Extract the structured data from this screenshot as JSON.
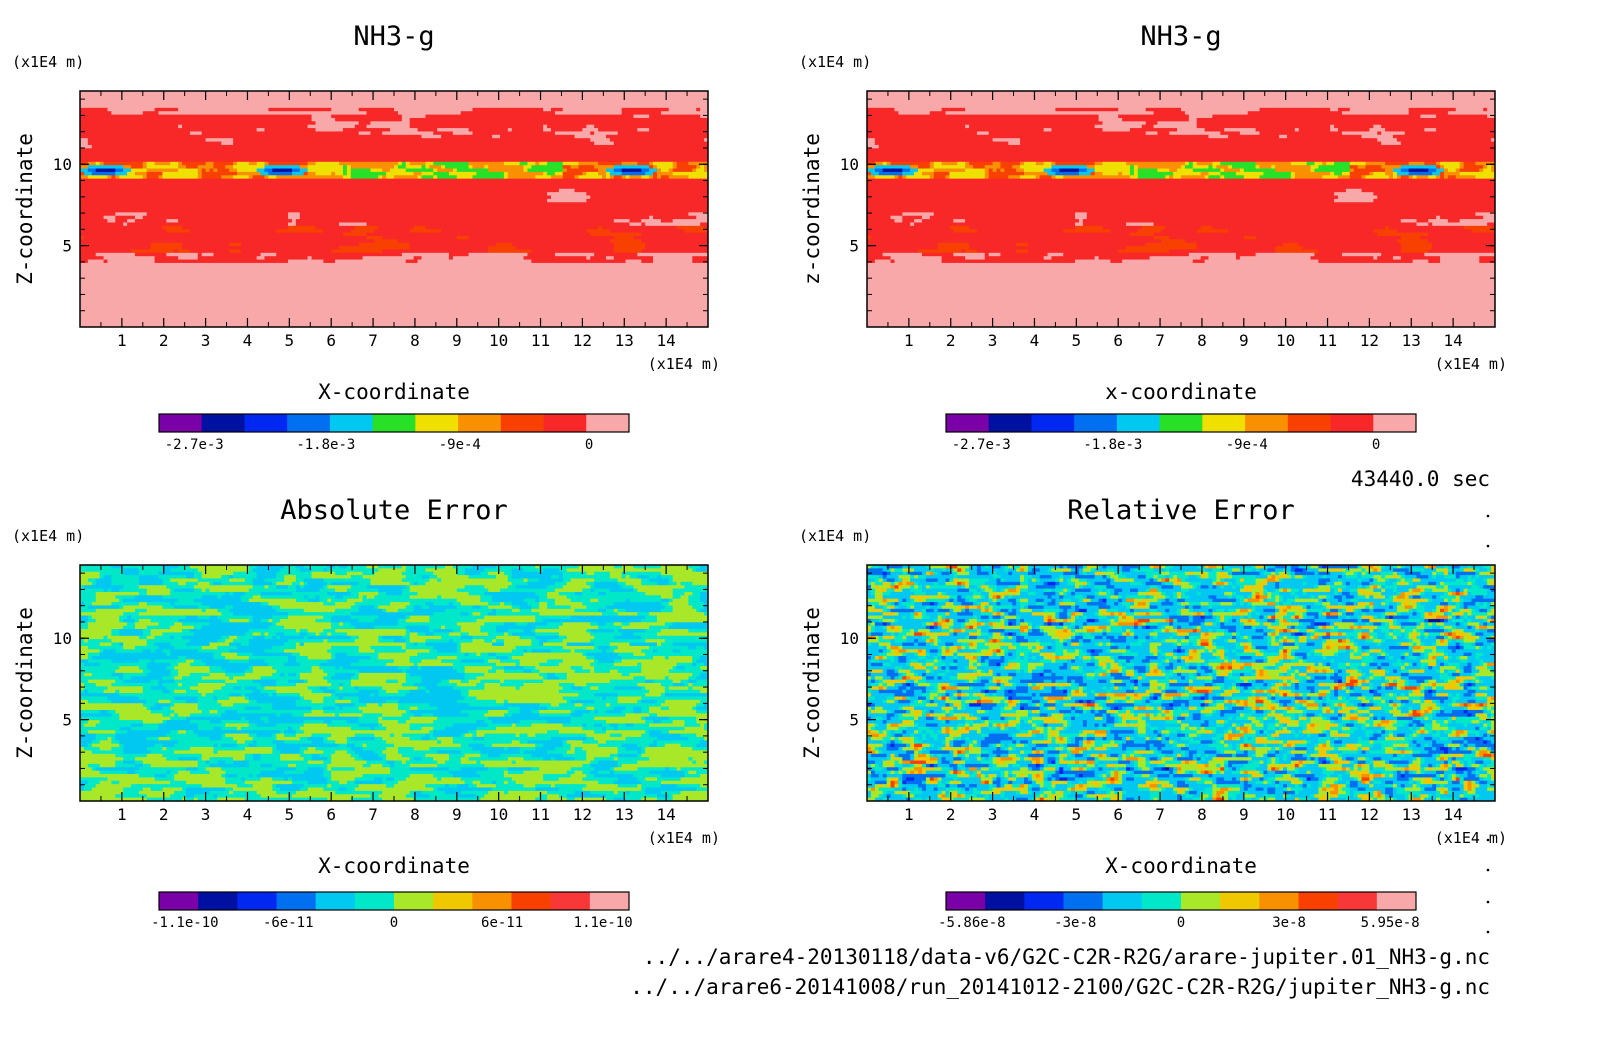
{
  "chart_data": [
    {
      "type": "heatmap",
      "id": "p1",
      "title": "NH3-g",
      "xlabel": "X-coordinate",
      "ylabel": "Z-coordinate",
      "x_unit": "(x1E4 m)",
      "y_unit": "(x1E4 m)",
      "xlim": [
        0,
        15
      ],
      "ylim": [
        0,
        14.5
      ],
      "x_ticks": [
        "1",
        "2",
        "3",
        "4",
        "5",
        "6",
        "7",
        "8",
        "9",
        "10",
        "11",
        "12",
        "13",
        "14"
      ],
      "y_ticks": [
        "5",
        "10"
      ],
      "field": "nh3",
      "colorbar": {
        "colors": [
          "#7a00a8",
          "#0010a0",
          "#0028f0",
          "#0070f0",
          "#00c8f0",
          "#28e028",
          "#f0e000",
          "#f89000",
          "#f84000",
          "#f82828",
          "#f8a8a8"
        ],
        "labels": [
          "-2.7e-3",
          "-1.8e-3",
          "-9e-4",
          "0"
        ]
      }
    },
    {
      "type": "heatmap",
      "id": "p2",
      "title": "NH3-g",
      "xlabel": "x-coordinate",
      "ylabel": "z-coordinate",
      "x_unit": "(x1E4 m)",
      "y_unit": "(x1E4 m)",
      "xlim": [
        0,
        15
      ],
      "ylim": [
        0,
        14.5
      ],
      "x_ticks": [
        "1",
        "2",
        "3",
        "4",
        "5",
        "6",
        "7",
        "8",
        "9",
        "10",
        "11",
        "12",
        "13",
        "14"
      ],
      "y_ticks": [
        "5",
        "10"
      ],
      "field": "nh3",
      "colorbar": {
        "colors": [
          "#7a00a8",
          "#0010a0",
          "#0028f0",
          "#0070f0",
          "#00c8f0",
          "#28e028",
          "#f0e000",
          "#f89000",
          "#f84000",
          "#f82828",
          "#f8a8a8"
        ],
        "labels": [
          "-2.7e-3",
          "-1.8e-3",
          "-9e-4",
          "0"
        ]
      }
    },
    {
      "type": "heatmap",
      "id": "p3",
      "title": "Absolute Error",
      "xlabel": "X-coordinate",
      "ylabel": "Z-coordinate",
      "x_unit": "(x1E4 m)",
      "y_unit": "(x1E4 m)",
      "xlim": [
        0,
        15
      ],
      "ylim": [
        0,
        14.5
      ],
      "x_ticks": [
        "1",
        "2",
        "3",
        "4",
        "5",
        "6",
        "7",
        "8",
        "9",
        "10",
        "11",
        "12",
        "13",
        "14"
      ],
      "y_ticks": [
        "5",
        "10"
      ],
      "field": "abs_error",
      "colorbar": {
        "colors": [
          "#7a00a8",
          "#0010a0",
          "#0028f0",
          "#0070f0",
          "#00c8f0",
          "#00e8c8",
          "#a8e828",
          "#f0c800",
          "#f89000",
          "#f84000",
          "#f83838",
          "#f8a8a8"
        ],
        "labels": [
          "-1.1e-10",
          "-6e-11",
          "0",
          "6e-11",
          "1.1e-10"
        ]
      }
    },
    {
      "type": "heatmap",
      "id": "p4",
      "title": "Relative Error",
      "xlabel": "X-coordinate",
      "ylabel": "Z-coordinate",
      "x_unit": "(x1E4 m)",
      "y_unit": "(x1E4 m)",
      "xlim": [
        0,
        15
      ],
      "ylim": [
        0,
        14.5
      ],
      "x_ticks": [
        "1",
        "2",
        "3",
        "4",
        "5",
        "6",
        "7",
        "8",
        "9",
        "10",
        "11",
        "12",
        "13",
        "14"
      ],
      "y_ticks": [
        "5",
        "10"
      ],
      "field": "rel_error",
      "colorbar": {
        "colors": [
          "#7a00a8",
          "#0010a0",
          "#0028f0",
          "#0070f0",
          "#00c8f0",
          "#00e8c8",
          "#a8e828",
          "#f0c800",
          "#f89000",
          "#f84000",
          "#f83838",
          "#f8a8a8"
        ],
        "labels": [
          "-5.86e-8",
          "-3e-8",
          "0",
          "3e-8",
          "5.95e-8"
        ]
      }
    }
  ],
  "time_label": "43440.0 sec",
  "file_paths": [
    "../../arare4-20130118/data-v6/G2C-C2R-R2G/arare-jupiter.01_NH3-g.nc",
    "../../arare6-20141008/run_20141012-2100/G2C-C2R-R2G/jupiter_NH3-g.nc"
  ]
}
